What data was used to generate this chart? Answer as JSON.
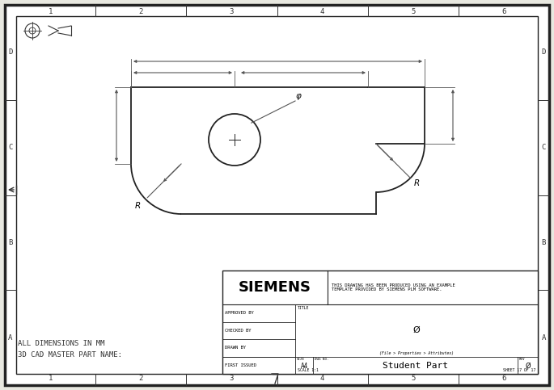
{
  "bg_color": "#e8e8e0",
  "border_color": "#222222",
  "line_color": "#333333",
  "dim_color": "#444444",
  "part_color": "#222222",
  "fig_width": 6.85,
  "fig_height": 4.83,
  "row_labels": [
    "A",
    "B",
    "C",
    "D"
  ],
  "col_labels": [
    "1",
    "2",
    "3",
    "4",
    "5",
    "6"
  ],
  "siemens_title": "SIEMENS",
  "subtitle_line1": "THIS DRAWING HAS BEEN PRODUCED USING AN EXAMPLE",
  "subtitle_line2": "TEMPLATE PROVIDED BY SIEMENS PLM SOFTWARE.",
  "bottom_text1": "ALL DIMENSIONS IN MM",
  "bottom_text2": "3D CAD MASTER PART NAME:",
  "table_rows": [
    "FIRST ISSUED",
    "DRAWN BY",
    "CHECKED BY",
    "APPROVED BY"
  ],
  "size_label": "A4",
  "scale_label": "SCALE 1:1",
  "sheet_label": "SHEET 17 OF 17",
  "part_name": "Student Part",
  "dwg_no_label": "DWG NO.",
  "size_col_label": "SIZE",
  "rev_label": "REV",
  "title_label": "TITLE",
  "phi_sym": "φ",
  "r_sym": "R",
  "zero_sym": "Ø"
}
